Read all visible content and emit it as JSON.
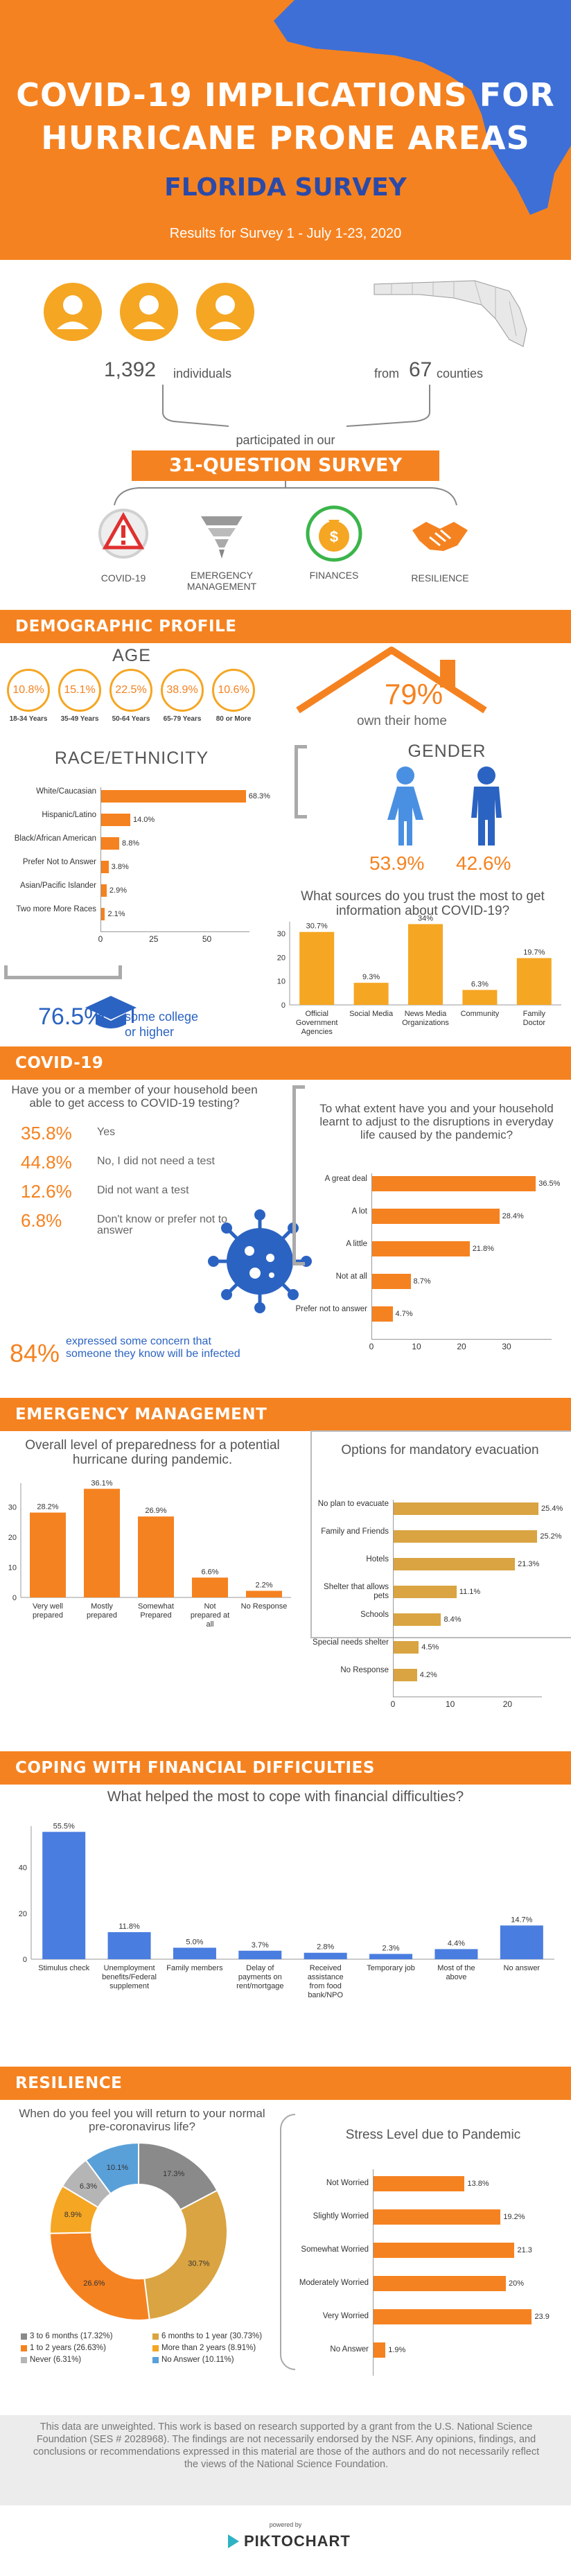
{
  "header": {
    "title_line1": "COVID-19 IMPLICATIONS FOR",
    "title_line2": "HURRICANE PRONE AREAS",
    "subtitle": "FLORIDA SURVEY",
    "results": "Results for Survey 1 - July 1-23, 2020"
  },
  "summary": {
    "individuals_num": "1,392",
    "individuals_label": "individuals",
    "counties_from": "from",
    "counties_num": "67",
    "counties_label": "counties",
    "participated": "participated in our",
    "survey_label": "31-QUESTION SURVEY",
    "topics": [
      "COVID-19",
      "EMERGENCY MANAGEMENT",
      "FINANCES",
      "RESILIENCE"
    ]
  },
  "demographic": {
    "banner": "DEMOGRAPHIC PROFILE",
    "age_title": "AGE",
    "ages": [
      {
        "pct": "10.8%",
        "label": "18-34 Years"
      },
      {
        "pct": "15.1%",
        "label": "35-49 Years"
      },
      {
        "pct": "22.5%",
        "label": "50-64 Years"
      },
      {
        "pct": "38.9%",
        "label": "65-79 Years"
      },
      {
        "pct": "10.6%",
        "label": "80 or More"
      }
    ],
    "home_pct": "79%",
    "home_label": "own their home",
    "race_title": "RACE/ETHNICITY",
    "gender_title": "GENDER",
    "female_pct": "53.9%",
    "male_pct": "42.6%",
    "college_pct": "76.5%",
    "college_label1": "some college",
    "college_label2": "or higher"
  },
  "covid": {
    "banner": "COVID-19",
    "test_question": "Have you or a member of your household been able to get access to COVID-19 testing?",
    "test_answers": [
      {
        "pct": "35.8%",
        "label": "Yes"
      },
      {
        "pct": "44.8%",
        "label": "No, I did not need a test"
      },
      {
        "pct": "12.6%",
        "label": "Did not want a test"
      },
      {
        "pct": "6.8%",
        "label": "Don't know or prefer not to answer"
      }
    ],
    "concern_pct": "84%",
    "concern_label": "expressed some concern that someone they know will be infected"
  },
  "emergency": {
    "banner": "EMERGENCY MANAGEMENT"
  },
  "financial": {
    "banner": "COPING WITH FINANCIAL DIFFICULTIES"
  },
  "resilience": {
    "banner": "RESILIENCE"
  },
  "footer": {
    "disclaimer": "This data are unweighted. This work is based on research supported by a grant from the U.S. National Science Foundation (SES # 2028968). The findings are not necessarily endorsed by the NSF. Any opinions, findings, and conclusions or recommendations expressed in this material are those of the authors and do not necessarily reflect the views of the National Science Foundation.",
    "powered_by": "powered by",
    "brand": "PIKTOCHART"
  },
  "colors": {
    "orange": "#f58220",
    "blue": "#4a7de0",
    "tan": "#d9a441",
    "gray": "#888888"
  },
  "chart_data": [
    {
      "id": "race",
      "type": "bar",
      "title": "RACE/ETHNICITY",
      "categories": [
        "White/Caucasian",
        "Hispanic/Latino",
        "Black/African American",
        "Prefer Not to Answer",
        "Asian/Pacific Islander",
        "Two more More Races"
      ],
      "values": [
        68.3,
        14.0,
        8.8,
        3.8,
        2.9,
        2.1
      ],
      "labels": [
        "68.3%",
        "14.0%",
        "8.8%",
        "3.8%",
        "2.9%",
        "2.1%"
      ],
      "xlim": [
        0,
        70
      ],
      "xticks": [
        "0",
        "25",
        "50"
      ]
    },
    {
      "id": "sources",
      "type": "bar",
      "title": "What sources do you trust the most to get information about COVID-19?",
      "categories": [
        "Official Government Agencies",
        "Social Media",
        "News Media Organizations",
        "Community",
        "Family Doctor"
      ],
      "values": [
        30.7,
        9.3,
        34,
        6.3,
        19.7
      ],
      "labels": [
        "30.7%",
        "9.3%",
        "34%",
        "6.3%",
        "19.7%"
      ],
      "ylim": [
        0,
        35
      ],
      "yticks": [
        "0",
        "10",
        "20",
        "30"
      ]
    },
    {
      "id": "adjust",
      "type": "bar",
      "title": "To what extent have you and your household learnt to adjust to the disruptions in everyday life caused by the pandemic?",
      "categories": [
        "A great deal",
        "A lot",
        "A little",
        "Not at all",
        "Prefer not to answer"
      ],
      "values": [
        36.5,
        28.4,
        21.8,
        8.7,
        4.7
      ],
      "labels": [
        "36.5%",
        "28.4%",
        "21.8%",
        "8.7%",
        "4.7%"
      ],
      "xlim": [
        0,
        40
      ],
      "xticks": [
        "0",
        "10",
        "20",
        "30"
      ]
    },
    {
      "id": "prepared",
      "type": "bar",
      "title": "Overall level of preparedness for a potential hurricane during pandemic.",
      "categories": [
        "Very well prepared",
        "Mostly prepared",
        "Somewhat Prepared",
        "Not prepared at all",
        "No Response"
      ],
      "values": [
        28.2,
        36.1,
        26.9,
        6.6,
        2.2
      ],
      "labels": [
        "28.2%",
        "36.1%",
        "26.9%",
        "6.6%",
        "2.2%"
      ],
      "ylim": [
        0,
        38
      ],
      "yticks": [
        "0",
        "10",
        "20",
        "30"
      ]
    },
    {
      "id": "evacuation",
      "type": "bar",
      "title": "Options for mandatory evacuation",
      "categories": [
        "No plan to evacuate",
        "Family and Friends",
        "Hotels",
        "Shelter that allows pets",
        "Schools",
        "Special needs shelter",
        "No Response"
      ],
      "values": [
        25.4,
        25.2,
        21.3,
        11.1,
        8.4,
        4.5,
        4.2
      ],
      "labels": [
        "25.4%",
        "25.2%",
        "21.3%",
        "11.1%",
        "8.4%",
        "4.5%",
        "4.2%"
      ],
      "xlim": [
        0,
        26
      ],
      "xticks": [
        "0",
        "10",
        "20"
      ]
    },
    {
      "id": "financial",
      "type": "bar",
      "title": "What helped the most to cope with financial difficulties?",
      "categories": [
        "Stimulus check",
        "Unemployment benefits/Federal supplement",
        "Family members",
        "Delay of payments on rent/mortgage",
        "Received assistance from food bank/NPO",
        "Temporary job",
        "Most of the above",
        "No answer"
      ],
      "values": [
        55.5,
        11.8,
        5.0,
        3.7,
        2.8,
        2.3,
        4.4,
        14.7
      ],
      "labels": [
        "55.5%",
        "11.8%",
        "5.0%",
        "3.7%",
        "2.8%",
        "2.3%",
        "4.4%",
        "14.7%"
      ],
      "ylim": [
        0,
        58
      ],
      "yticks": [
        "0",
        "20",
        "40"
      ]
    },
    {
      "id": "return",
      "type": "pie",
      "title": "When do you feel you will return to your normal pre-coronavirus life?",
      "categories": [
        "3 to 6 months",
        "6 months to 1 year",
        "1 to 2 years",
        "More than 2 years",
        "Never",
        "No Answer"
      ],
      "values": [
        17.32,
        30.73,
        26.63,
        8.91,
        6.31,
        10.11
      ],
      "labels": [
        "17.3%",
        "30.7%",
        "26.6%",
        "8.9%",
        "6.3%",
        "10.1%"
      ],
      "legend": [
        "3 to 6 months (17.32%)",
        "6 months to 1 year (30.73%)",
        "1 to 2 years (26.63%)",
        "More than 2 years (8.91%)",
        "Never (6.31%)",
        "No Answer (10.11%)"
      ]
    },
    {
      "id": "stress",
      "type": "bar",
      "title": "Stress Level due to Pandemic",
      "categories": [
        "Not Worried",
        "Slightly Worried",
        "Somewhat Worried",
        "Moderately Worried",
        "Very Worried",
        "No Answer"
      ],
      "values": [
        13.8,
        19.2,
        21.3,
        20,
        23.9,
        1.9
      ],
      "labels": [
        "13.8%",
        "19.2%",
        "21.3",
        "20%",
        "23.9",
        "1.9%"
      ],
      "xlim": [
        0,
        25
      ]
    }
  ]
}
